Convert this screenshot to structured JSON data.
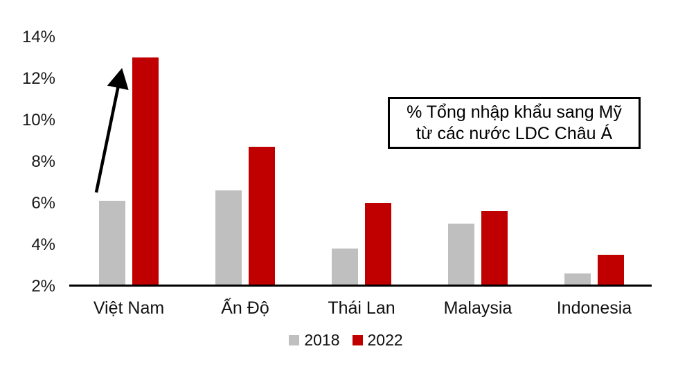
{
  "chart_data": {
    "type": "bar",
    "title": "",
    "categories": [
      "Việt Nam",
      "Ấn Độ",
      "Thái Lan",
      "Malaysia",
      "Indonesia"
    ],
    "series": [
      {
        "name": "2018",
        "color": "#BFBFBF",
        "values": [
          6.1,
          6.6,
          3.8,
          5.0,
          2.6
        ]
      },
      {
        "name": "2022",
        "color": "#C00000",
        "values": [
          13.0,
          8.7,
          6.0,
          5.6,
          3.5
        ]
      }
    ],
    "ylim": [
      2,
      14
    ],
    "yticks": [
      2,
      4,
      6,
      8,
      10,
      12,
      14
    ],
    "ytick_suffix": "%",
    "xlabel": "",
    "ylabel": "",
    "grid": false,
    "legend_position": "bottom",
    "annotation": {
      "line1": "% Tổng nhập khẩu sang Mỹ",
      "line2": "từ các nước LDC Châu Á"
    },
    "arrow": {
      "category": "Việt Nam",
      "from_series": "2018",
      "to_series": "2022",
      "direction": "up"
    }
  },
  "colors": {
    "bar_2018": "#BFBFBF",
    "bar_2022": "#C00000",
    "axis": "#000000",
    "text": "#1A1A1A",
    "background": "#FFFFFF"
  }
}
